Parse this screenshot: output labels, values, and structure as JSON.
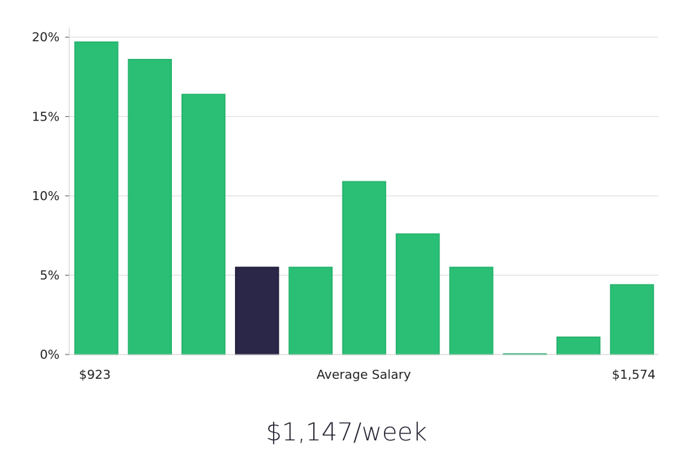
{
  "chart_data": {
    "type": "bar",
    "values": [
      19.7,
      18.6,
      16.4,
      5.5,
      5.5,
      10.9,
      7.6,
      5.5,
      0.0,
      1.1,
      4.4
    ],
    "highlight_index": 3,
    "ylim": [
      0,
      20.6
    ],
    "yticks": [
      0,
      5,
      10,
      15,
      20
    ],
    "ytick_labels": [
      "0%",
      "5%",
      "10%",
      "15%",
      "20%"
    ],
    "x_min_label": "$923",
    "x_max_label": "$1,574",
    "xlabel": "Average Salary",
    "grid": true,
    "colors": {
      "bar": "#2bbf76",
      "bar_edge": "#22b06a",
      "highlight": "#2b2748",
      "highlight_edge": "#1d1a36",
      "grid": "#d9d9d9",
      "axis": "#cccccc"
    }
  },
  "headline": "$1,147/week"
}
